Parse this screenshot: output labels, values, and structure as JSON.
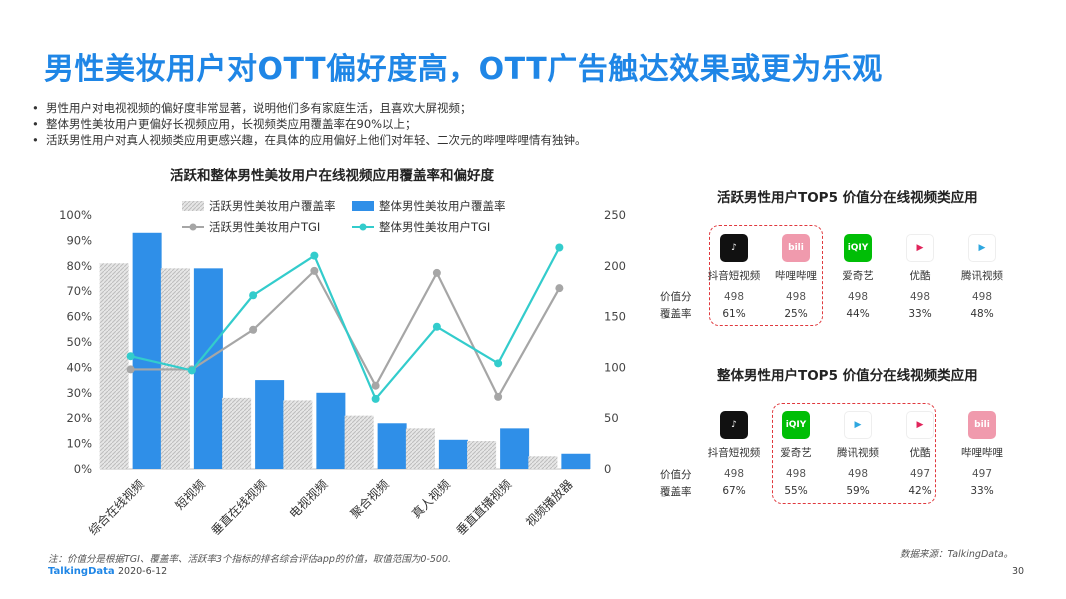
{
  "title": "男性美妆用户对OTT偏好度高，OTT广告触达效果或更为乐观",
  "bullets": [
    "男性用户对电视视频的偏好度非常显著，说明他们多有家庭生活，且喜欢大屏视频；",
    "整体男性美妆用户更偏好长视频应用，长视频类应用覆盖率在90%以上；",
    "活跃男性用户对真人视频类应用更感兴趣，在具体的应用偏好上他们对年轻、二次元的哔哩哔哩情有独钟。"
  ],
  "chart_data": {
    "type": "bar",
    "title": "活跃和整体男性美妆用户在线视频应用覆盖率和偏好度",
    "categories": [
      "综合在线视频",
      "短视频",
      "垂直在线视频",
      "电视视频",
      "聚合视频",
      "真人视频",
      "垂直直播视频",
      "视频播放器"
    ],
    "series": [
      {
        "name": "活跃男性美妆用户覆盖率",
        "type": "bar",
        "axis": "left",
        "values": [
          81,
          79,
          28,
          27,
          21,
          16,
          11,
          5
        ]
      },
      {
        "name": "整体男性美妆用户覆盖率",
        "type": "bar",
        "axis": "left",
        "values": [
          93,
          79,
          35,
          30,
          18,
          11.5,
          16,
          6
        ]
      },
      {
        "name": "活跃男性美妆用户TGI",
        "type": "line",
        "axis": "right",
        "values": [
          98,
          98,
          137,
          195,
          82,
          193,
          71,
          178
        ]
      },
      {
        "name": "整体男性美妆用户TGI",
        "type": "line",
        "axis": "right",
        "values": [
          111,
          97,
          171,
          210,
          69,
          140,
          104,
          218
        ]
      }
    ],
    "y_left_ticks": [
      "0%",
      "10%",
      "20%",
      "30%",
      "40%",
      "50%",
      "60%",
      "70%",
      "80%",
      "90%",
      "100%"
    ],
    "y_right_ticks": [
      "0",
      "50",
      "100",
      "150",
      "200",
      "250"
    ],
    "ylim_left": [
      0,
      100
    ],
    "ylim_right": [
      0,
      250
    ],
    "colors": {
      "active_bar": "#d4d4d4",
      "all_bar": "#2f8fe8",
      "active_line": "#a6a6a6",
      "all_line": "#33cccc"
    }
  },
  "active_panel": {
    "title": "活跃男性用户TOP5 价值分在线视频类应用",
    "row_labels": [
      "价值分",
      "覆盖率"
    ],
    "apps": [
      {
        "name": "抖音短视频",
        "icon": "douyin-icon",
        "value": "498",
        "coverage": "61%"
      },
      {
        "name": "哔哩哔哩",
        "icon": "bilibili-icon",
        "value": "498",
        "coverage": "25%"
      },
      {
        "name": "爱奇艺",
        "icon": "iqiyi-icon",
        "value": "498",
        "coverage": "44%"
      },
      {
        "name": "优酷",
        "icon": "youku-icon",
        "value": "498",
        "coverage": "33%"
      },
      {
        "name": "腾讯视频",
        "icon": "tencent-video-icon",
        "value": "498",
        "coverage": "48%"
      }
    ]
  },
  "all_panel": {
    "title": "整体男性用户TOP5 价值分在线视频类应用",
    "row_labels": [
      "价值分",
      "覆盖率"
    ],
    "apps": [
      {
        "name": "抖音短视频",
        "icon": "douyin-icon",
        "value": "498",
        "coverage": "67%"
      },
      {
        "name": "爱奇艺",
        "icon": "iqiyi-icon",
        "value": "498",
        "coverage": "55%"
      },
      {
        "name": "腾讯视频",
        "icon": "tencent-video-icon",
        "value": "498",
        "coverage": "59%"
      },
      {
        "name": "优酷",
        "icon": "youku-icon",
        "value": "497",
        "coverage": "42%"
      },
      {
        "name": "哔哩哔哩",
        "icon": "bilibili-icon",
        "value": "497",
        "coverage": "33%"
      }
    ]
  },
  "note": "注：价值分是根据TGI、覆盖率、活跃率3个指标的排名综合评估app的价值，取值范围为0-500.",
  "source": "数据来源：TalkingData。",
  "footer": {
    "logo": "TalkingData",
    "date": "2020-6-12",
    "page": "30"
  }
}
